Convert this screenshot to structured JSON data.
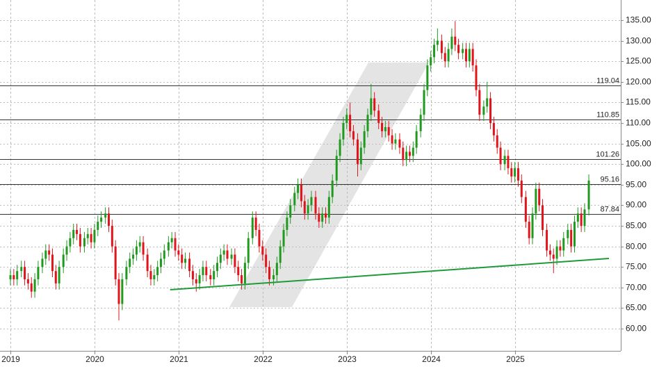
{
  "chart_data": {
    "type": "candlestick",
    "xlim": [
      2018.876,
      2026.26
    ],
    "xticks": [
      2019,
      2020,
      2021,
      2022,
      2023,
      2024,
      2025
    ],
    "ylim": [
      54.6,
      139.9
    ],
    "yticks": [
      {
        "value": 60,
        "label": "60.00"
      },
      {
        "value": 65,
        "label": "65.00"
      },
      {
        "value": 70,
        "label": "70.00"
      },
      {
        "value": 75,
        "label": "75.00"
      },
      {
        "value": 80,
        "label": "80.00"
      },
      {
        "value": 85,
        "label": "85.00"
      },
      {
        "value": 90,
        "label": "90.00"
      },
      {
        "value": 95,
        "label": "95.00"
      },
      {
        "value": 100,
        "label": "100.00"
      },
      {
        "value": 105,
        "label": "105.00"
      },
      {
        "value": 110,
        "label": "110.00"
      },
      {
        "value": 115,
        "label": "115.00"
      },
      {
        "value": 120,
        "label": "120.00"
      },
      {
        "value": 125,
        "label": "125.00"
      },
      {
        "value": 130,
        "label": "130.00"
      },
      {
        "value": 135,
        "label": "135.00"
      }
    ],
    "grid": true,
    "levels": [
      119.04,
      110.85,
      101.26,
      95.16,
      87.84
    ],
    "level_color": "#333333",
    "trendline": {
      "x": [
        2020.9,
        2026.12
      ],
      "y": [
        69.46,
        77.06
      ],
      "color": "#1f9a3a"
    },
    "series": [
      {
        "up_color": "#1f9a1f",
        "down_color": "#e0141a",
        "x": [
          2019,
          2019.04,
          2019.08,
          2019.13,
          2019.17,
          2019.21,
          2019.25,
          2019.29,
          2019.33,
          2019.38,
          2019.42,
          2019.46,
          2019.5,
          2019.54,
          2019.58,
          2019.63,
          2019.67,
          2019.71,
          2019.75,
          2019.79,
          2019.83,
          2019.88,
          2019.92,
          2019.96,
          2020,
          2020.04,
          2020.08,
          2020.13,
          2020.17,
          2020.21,
          2020.25,
          2020.29,
          2020.33,
          2020.38,
          2020.42,
          2020.46,
          2020.5,
          2020.54,
          2020.58,
          2020.63,
          2020.67,
          2020.71,
          2020.75,
          2020.79,
          2020.83,
          2020.88,
          2020.92,
          2020.96,
          2021,
          2021.04,
          2021.08,
          2021.13,
          2021.17,
          2021.21,
          2021.25,
          2021.29,
          2021.33,
          2021.38,
          2021.42,
          2021.46,
          2021.5,
          2021.54,
          2021.58,
          2021.63,
          2021.67,
          2021.71,
          2021.75,
          2021.79,
          2021.83,
          2021.88,
          2021.92,
          2021.96,
          2022,
          2022.04,
          2022.08,
          2022.13,
          2022.17,
          2022.21,
          2022.25,
          2022.29,
          2022.33,
          2022.38,
          2022.42,
          2022.46,
          2022.5,
          2022.54,
          2022.58,
          2022.63,
          2022.67,
          2022.71,
          2022.75,
          2022.79,
          2022.83,
          2022.88,
          2022.92,
          2022.96,
          2023,
          2023.04,
          2023.08,
          2023.13,
          2023.17,
          2023.21,
          2023.25,
          2023.29,
          2023.33,
          2023.38,
          2023.42,
          2023.46,
          2023.5,
          2023.54,
          2023.58,
          2023.63,
          2023.67,
          2023.71,
          2023.75,
          2023.79,
          2023.83,
          2023.88,
          2023.92,
          2023.96,
          2024,
          2024.04,
          2024.08,
          2024.13,
          2024.17,
          2024.21,
          2024.25,
          2024.29,
          2024.33,
          2024.38,
          2024.42,
          2024.46,
          2024.5,
          2024.54,
          2024.58,
          2024.63,
          2024.67,
          2024.71,
          2024.75,
          2024.79,
          2024.83,
          2024.88,
          2024.92,
          2024.96,
          2025,
          2025.04,
          2025.08,
          2025.13,
          2025.17,
          2025.21,
          2025.25,
          2025.29,
          2025.33,
          2025.38,
          2025.42,
          2025.46,
          2025.5,
          2025.54,
          2025.58,
          2025.63,
          2025.67,
          2025.71,
          2025.75,
          2025.79,
          2025.83,
          2025.88
        ],
        "open": [
          72,
          73,
          72,
          74,
          75,
          72,
          71,
          69,
          72,
          75,
          77,
          79,
          78,
          74,
          71,
          75,
          78,
          80,
          82,
          84,
          83,
          80,
          82,
          83,
          81,
          84,
          86,
          87,
          88,
          85,
          80,
          72,
          66,
          72,
          75,
          77,
          78,
          80,
          81,
          78,
          74,
          72,
          73,
          75,
          77,
          79,
          81,
          82,
          79,
          78,
          76,
          77,
          74,
          72,
          71,
          73,
          75,
          73,
          72,
          74,
          76,
          78,
          79,
          77,
          78,
          75,
          73,
          71,
          76,
          82,
          87,
          84,
          80,
          78,
          75,
          72,
          73,
          76,
          80,
          84,
          87,
          90,
          93,
          95,
          91,
          88,
          90,
          92,
          88,
          86,
          88,
          87,
          92,
          96,
          102,
          106,
          110,
          112,
          108,
          106,
          100,
          104,
          108,
          112,
          116,
          113,
          110,
          108,
          109,
          107,
          105,
          106,
          104,
          101,
          103,
          102,
          104,
          108,
          112,
          118,
          124,
          126,
          129,
          130,
          127,
          125,
          128,
          131,
          129,
          127,
          128,
          125,
          128,
          124,
          118,
          112,
          114,
          116,
          110,
          107,
          104,
          100,
          102,
          99,
          97,
          99,
          96,
          92,
          86,
          82,
          88,
          94,
          90,
          84,
          79,
          78,
          77,
          80,
          79,
          82,
          84,
          80,
          86,
          88,
          85,
          89
        ],
        "high": [
          74.5,
          74.5,
          75.5,
          76.5,
          76.5,
          73.5,
          72.5,
          73.5,
          76.5,
          78.5,
          80.5,
          80.5,
          79.5,
          75.5,
          76.5,
          79.5,
          81.5,
          83.5,
          85.5,
          85.5,
          84.5,
          83.5,
          84.5,
          84.5,
          85.5,
          87.5,
          88.5,
          89.5,
          89.5,
          86.5,
          81.5,
          73.5,
          73.5,
          76.5,
          78.5,
          79.5,
          81.5,
          82.5,
          82.5,
          79.5,
          75.5,
          74.5,
          76.5,
          78.5,
          80.5,
          82.5,
          83.5,
          83.5,
          80.5,
          79.5,
          78.5,
          78.5,
          75.5,
          73.5,
          74.5,
          76.5,
          76.5,
          74.5,
          75.5,
          77.5,
          79.5,
          80.5,
          80.5,
          79.5,
          79.5,
          76.5,
          74.5,
          77.5,
          83.5,
          88.5,
          88.5,
          85.5,
          81.5,
          79.5,
          76.5,
          74.5,
          77.5,
          81.5,
          85.5,
          88.5,
          91.5,
          94.5,
          96.5,
          96.5,
          92.5,
          91.5,
          93.5,
          93.5,
          89.5,
          89.5,
          89.5,
          93.5,
          97.5,
          103.5,
          107.5,
          111.5,
          113.5,
          115,
          109.5,
          107.5,
          105.5,
          109.5,
          113.5,
          119.5,
          117.5,
          114.5,
          111.5,
          110.5,
          110.5,
          108.5,
          107.5,
          107.5,
          105.5,
          104.5,
          104.5,
          105.5,
          109.5,
          113.5,
          119.5,
          125.5,
          127.5,
          130.5,
          133,
          131.5,
          128.5,
          129.5,
          133,
          134.8,
          130.5,
          129.5,
          129.5,
          129.5,
          129.5,
          125.5,
          119.5,
          115.5,
          120,
          117.5,
          111.5,
          108.5,
          105.5,
          103.5,
          103.5,
          100.5,
          100.5,
          100.5,
          97.5,
          93.5,
          87.5,
          89.5,
          95.5,
          95.5,
          91.5,
          85.5,
          80.5,
          79.5,
          81.5,
          81.5,
          83.5,
          85.5,
          85.5,
          87.5,
          89.5,
          89.5,
          90.5,
          97.5
        ],
        "low": [
          70.5,
          70.5,
          70.5,
          72.5,
          70.5,
          69.5,
          67.5,
          67.5,
          70.5,
          73.5,
          75.5,
          76.5,
          72.5,
          69.5,
          69.5,
          73.5,
          76.5,
          78.5,
          80.5,
          81.5,
          78.5,
          78.5,
          80.5,
          79.5,
          79.5,
          82.5,
          84.5,
          85.5,
          83.5,
          78.5,
          70.5,
          62,
          64.5,
          70.5,
          73.5,
          75.5,
          76.5,
          78.5,
          76.5,
          72.5,
          70.5,
          70.5,
          71.5,
          73.5,
          75.5,
          77.5,
          79.5,
          77.5,
          76.5,
          74.5,
          74.5,
          72.5,
          70.5,
          69,
          69.5,
          71.5,
          71.5,
          70.5,
          70.5,
          72.5,
          74.5,
          76.5,
          75.5,
          75.5,
          73.5,
          71.5,
          69.5,
          69.5,
          74.5,
          80.5,
          82.5,
          78.5,
          76.5,
          73.5,
          70.5,
          70.5,
          71.5,
          74.5,
          78.5,
          82.5,
          85.5,
          88.5,
          91.5,
          89.5,
          86.5,
          86.5,
          88.5,
          86.5,
          84.5,
          84.5,
          85.5,
          85.5,
          90.5,
          94.5,
          100.5,
          104.5,
          108.5,
          106.5,
          104.5,
          97,
          98.5,
          102.5,
          106.5,
          110.5,
          111.5,
          108.5,
          106.5,
          106.5,
          105.5,
          103.5,
          103.5,
          102.5,
          99.5,
          99.5,
          100.5,
          100.5,
          102.5,
          106.5,
          110.5,
          116.5,
          122.5,
          124.5,
          127.5,
          125.5,
          123.5,
          123.5,
          126.5,
          127.5,
          125.5,
          125.5,
          123.5,
          123.5,
          122.5,
          116.5,
          110.5,
          110.5,
          112.5,
          108.5,
          105.5,
          102.5,
          98.5,
          98.5,
          97.5,
          95.5,
          95.5,
          94.5,
          90.5,
          84.5,
          80.5,
          80.5,
          86.5,
          88.5,
          82.5,
          77.5,
          76.5,
          73.5,
          75.5,
          77.5,
          77.5,
          80.5,
          78.5,
          78.5,
          84.5,
          83.5,
          83.5,
          87.5
        ],
        "close": [
          73,
          72,
          74,
          75,
          72,
          71,
          69,
          72,
          75,
          77,
          79,
          78,
          74,
          71,
          75,
          78,
          80,
          82,
          84,
          83,
          80,
          82,
          83,
          81,
          84,
          86,
          87,
          88,
          85,
          80,
          72,
          66,
          72,
          75,
          77,
          78,
          80,
          81,
          78,
          74,
          72,
          73,
          75,
          77,
          79,
          81,
          82,
          79,
          78,
          76,
          77,
          74,
          72,
          71,
          73,
          75,
          73,
          72,
          74,
          76,
          78,
          79,
          77,
          78,
          75,
          73,
          71,
          76,
          82,
          87,
          84,
          80,
          78,
          75,
          72,
          73,
          76,
          80,
          84,
          87,
          90,
          93,
          95,
          91,
          88,
          90,
          92,
          88,
          86,
          88,
          87,
          92,
          96,
          102,
          106,
          110,
          112,
          108,
          106,
          100,
          104,
          108,
          112,
          116,
          113,
          110,
          108,
          109,
          107,
          105,
          106,
          104,
          101,
          103,
          102,
          104,
          108,
          112,
          118,
          124,
          126,
          129,
          130,
          127,
          125,
          128,
          131,
          129,
          127,
          128,
          125,
          128,
          124,
          118,
          112,
          114,
          116,
          110,
          107,
          104,
          100,
          102,
          99,
          97,
          99,
          96,
          92,
          86,
          82,
          88,
          94,
          90,
          84,
          79,
          78,
          77,
          80,
          79,
          82,
          84,
          80,
          86,
          88,
          85,
          89,
          96
        ]
      }
    ]
  }
}
